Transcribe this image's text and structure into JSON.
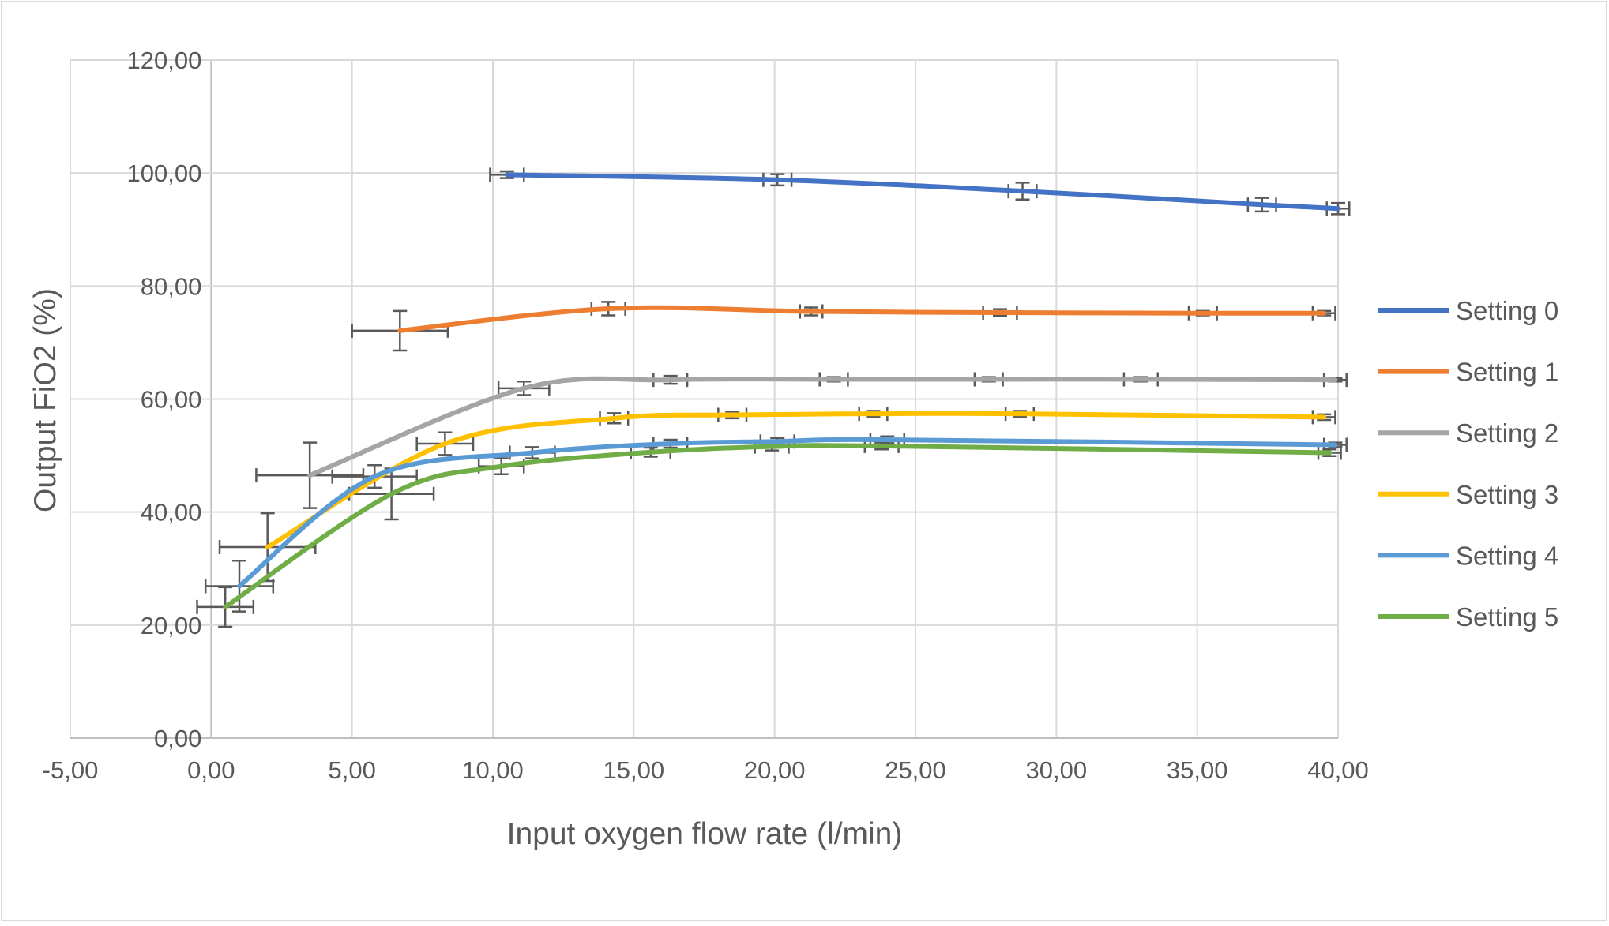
{
  "chart_data": {
    "type": "line",
    "title": "",
    "xlabel": "Input oxygen flow rate (l/min)",
    "ylabel": "Output FiO2 (%)",
    "xlim": [
      -5,
      40
    ],
    "ylim": [
      0,
      120
    ],
    "xticks": [
      -5,
      0,
      5,
      10,
      15,
      20,
      25,
      30,
      35,
      40
    ],
    "yticks": [
      0,
      20,
      40,
      60,
      80,
      100,
      120
    ],
    "tick_format": "comma-2-decimals",
    "grid": true,
    "smoothed": true,
    "error_bars": true,
    "legend_position": "right",
    "error_bar_color": "#595959",
    "series": [
      {
        "name": "Setting 0",
        "color": "#4472C4",
        "x": [
          10.5,
          20.1,
          28.8,
          37.3,
          40.0
        ],
        "y": [
          99.7,
          98.8,
          96.8,
          94.4,
          93.7
        ],
        "xerr": [
          0.6,
          0.5,
          0.5,
          0.5,
          0.4
        ],
        "yerr": [
          0.6,
          1.0,
          1.5,
          1.2,
          1.0
        ]
      },
      {
        "name": "Setting 1",
        "color": "#ED7D31",
        "x": [
          6.7,
          14.1,
          21.3,
          28.0,
          35.2,
          39.5
        ],
        "y": [
          72.1,
          76.0,
          75.5,
          75.3,
          75.2,
          75.2
        ],
        "xerr": [
          1.7,
          0.6,
          0.4,
          0.6,
          0.5,
          0.4
        ],
        "yerr": [
          3.5,
          1.2,
          0.7,
          0.6,
          0.4,
          0.4
        ]
      },
      {
        "name": "Setting 2",
        "color": "#A5A5A5",
        "x": [
          3.5,
          11.1,
          16.3,
          22.1,
          27.6,
          33.0,
          39.9
        ],
        "y": [
          46.5,
          61.9,
          63.4,
          63.5,
          63.5,
          63.5,
          63.4
        ],
        "xerr": [
          1.9,
          0.9,
          0.6,
          0.5,
          0.5,
          0.6,
          0.4
        ],
        "yerr": [
          5.8,
          1.2,
          0.7,
          0.4,
          0.4,
          0.4,
          0.3
        ]
      },
      {
        "name": "Setting 3",
        "color": "#FFC000",
        "x": [
          2.0,
          8.3,
          14.3,
          18.5,
          23.5,
          28.7,
          39.5
        ],
        "y": [
          33.8,
          52.1,
          56.6,
          57.2,
          57.4,
          57.4,
          56.8
        ],
        "xerr": [
          1.7,
          1.0,
          0.5,
          0.5,
          0.5,
          0.5,
          0.4
        ],
        "yerr": [
          6.0,
          2.0,
          0.9,
          0.6,
          0.5,
          0.5,
          0.5
        ]
      },
      {
        "name": "Setting 4",
        "color": "#5B9BD5",
        "x": [
          1.0,
          5.8,
          11.4,
          16.3,
          20.1,
          24.0,
          39.9
        ],
        "y": [
          26.9,
          46.3,
          50.5,
          52.1,
          52.5,
          52.8,
          51.9
        ],
        "xerr": [
          1.2,
          1.5,
          0.8,
          0.6,
          0.6,
          0.6,
          0.4
        ],
        "yerr": [
          4.5,
          2.0,
          1.0,
          0.7,
          0.6,
          0.6,
          0.4
        ]
      },
      {
        "name": "Setting 5",
        "color": "#70AD47",
        "x": [
          0.5,
          6.4,
          10.3,
          15.6,
          19.9,
          23.8,
          39.7
        ],
        "y": [
          23.2,
          43.2,
          48.1,
          50.6,
          51.6,
          51.7,
          50.5
        ],
        "xerr": [
          1.0,
          1.5,
          0.8,
          0.7,
          0.6,
          0.6,
          0.4
        ],
        "yerr": [
          3.5,
          4.5,
          1.4,
          0.8,
          0.7,
          0.6,
          0.6
        ]
      }
    ]
  }
}
